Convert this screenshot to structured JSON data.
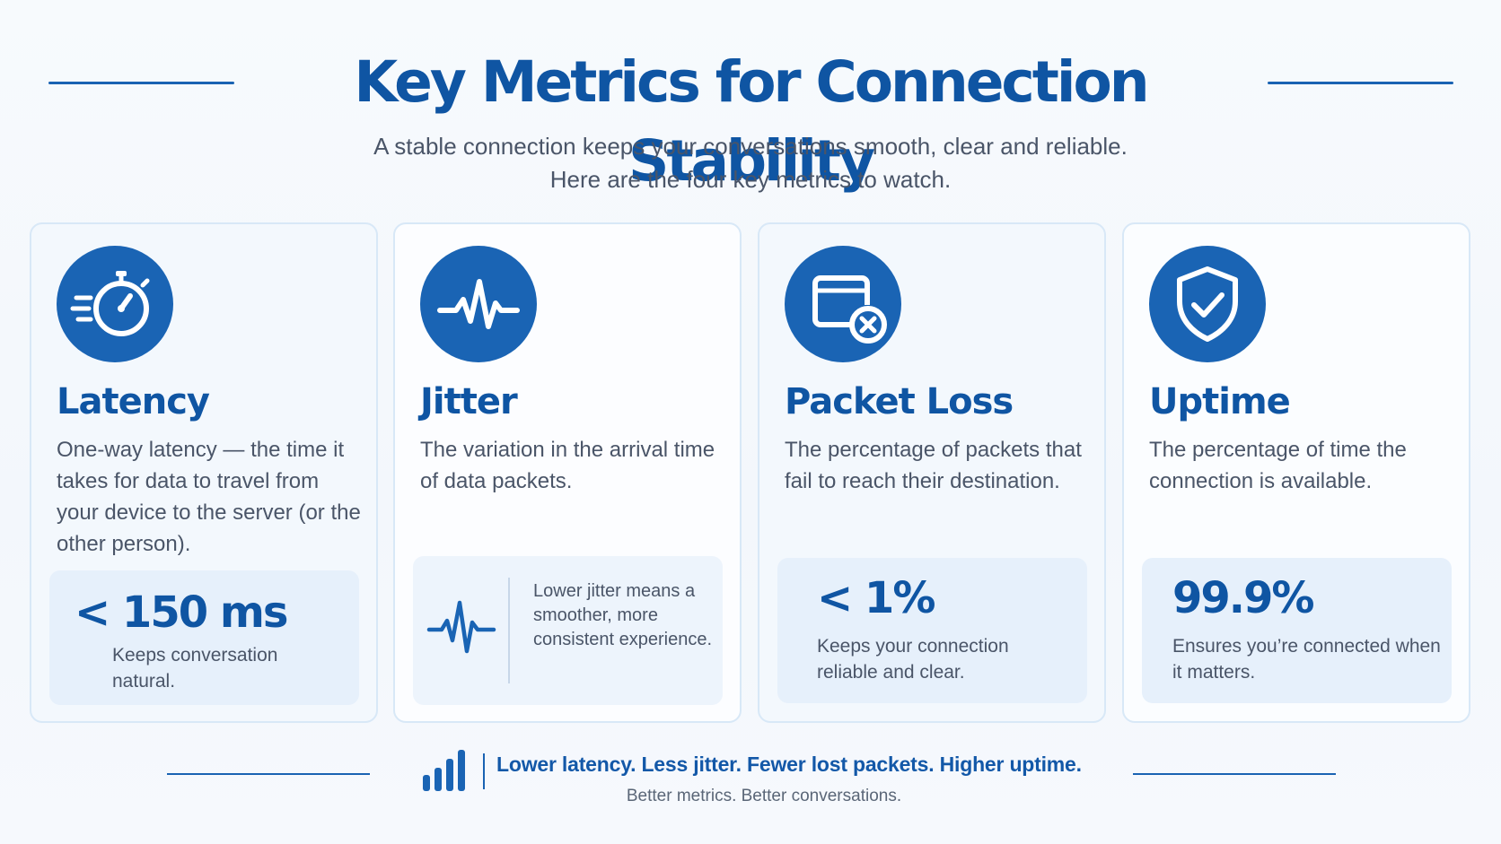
{
  "header": {
    "title": "Key Metrics for Connection Stability",
    "subtitle_line1": "A stable connection keeps your conversations smooth, clear and reliable.",
    "subtitle_line2": "Here are the four key metrics to watch."
  },
  "cards": [
    {
      "icon": "stopwatch-icon",
      "title": "Latency",
      "description": "One-way latency — the time it takes for data to travel from your device to the server (or the other person).",
      "stat_value": "< 150 ms",
      "stat_note": "Keeps conversation natural."
    },
    {
      "icon": "pulse-icon",
      "title": "Jitter",
      "description": "The variation in the arrival time of data packets.",
      "stat_icon": "waveform-icon",
      "stat_note": "Lower jitter means a smoother, more consistent experience."
    },
    {
      "icon": "window-x-icon",
      "title": "Packet Loss",
      "description": "The percentage of packets that fail to reach their destination.",
      "stat_value": "< 1%",
      "stat_note": "Keeps your connection reliable and clear."
    },
    {
      "icon": "shield-check-icon",
      "title": "Uptime",
      "description": "The percentage of time the connection is available.",
      "stat_value": "99.9%",
      "stat_note": "Ensures you’re connected when it matters."
    }
  ],
  "footer": {
    "icon": "signal-bars-icon",
    "tagline": "Lower latency. Less jitter. Fewer lost packets. Higher uptime.",
    "subline": "Better metrics. Better conversations."
  },
  "colors": {
    "accent": "#1a64b4",
    "title": "#0f55a3",
    "text": "#4a5568",
    "card_border": "#d8e8f7",
    "stat_box": "#e6f0fb"
  }
}
